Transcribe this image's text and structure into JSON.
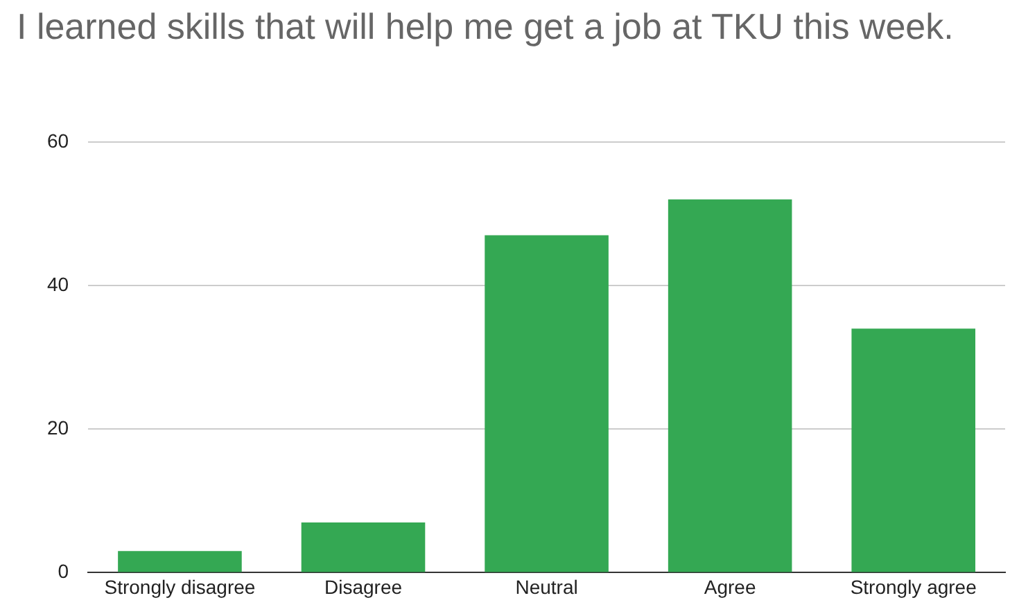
{
  "chart_data": {
    "type": "bar",
    "title": "I learned skills that will help me get a job at TKU this week.",
    "categories": [
      "Strongly disagree",
      "Disagree",
      "Neutral",
      "Agree",
      "Strongly agree"
    ],
    "values": [
      3,
      7,
      47,
      52,
      34
    ],
    "color": "#34a853",
    "ylim": [
      0,
      60
    ],
    "yticks": [
      0,
      20,
      40,
      60
    ],
    "grid": "y",
    "legend": false
  }
}
